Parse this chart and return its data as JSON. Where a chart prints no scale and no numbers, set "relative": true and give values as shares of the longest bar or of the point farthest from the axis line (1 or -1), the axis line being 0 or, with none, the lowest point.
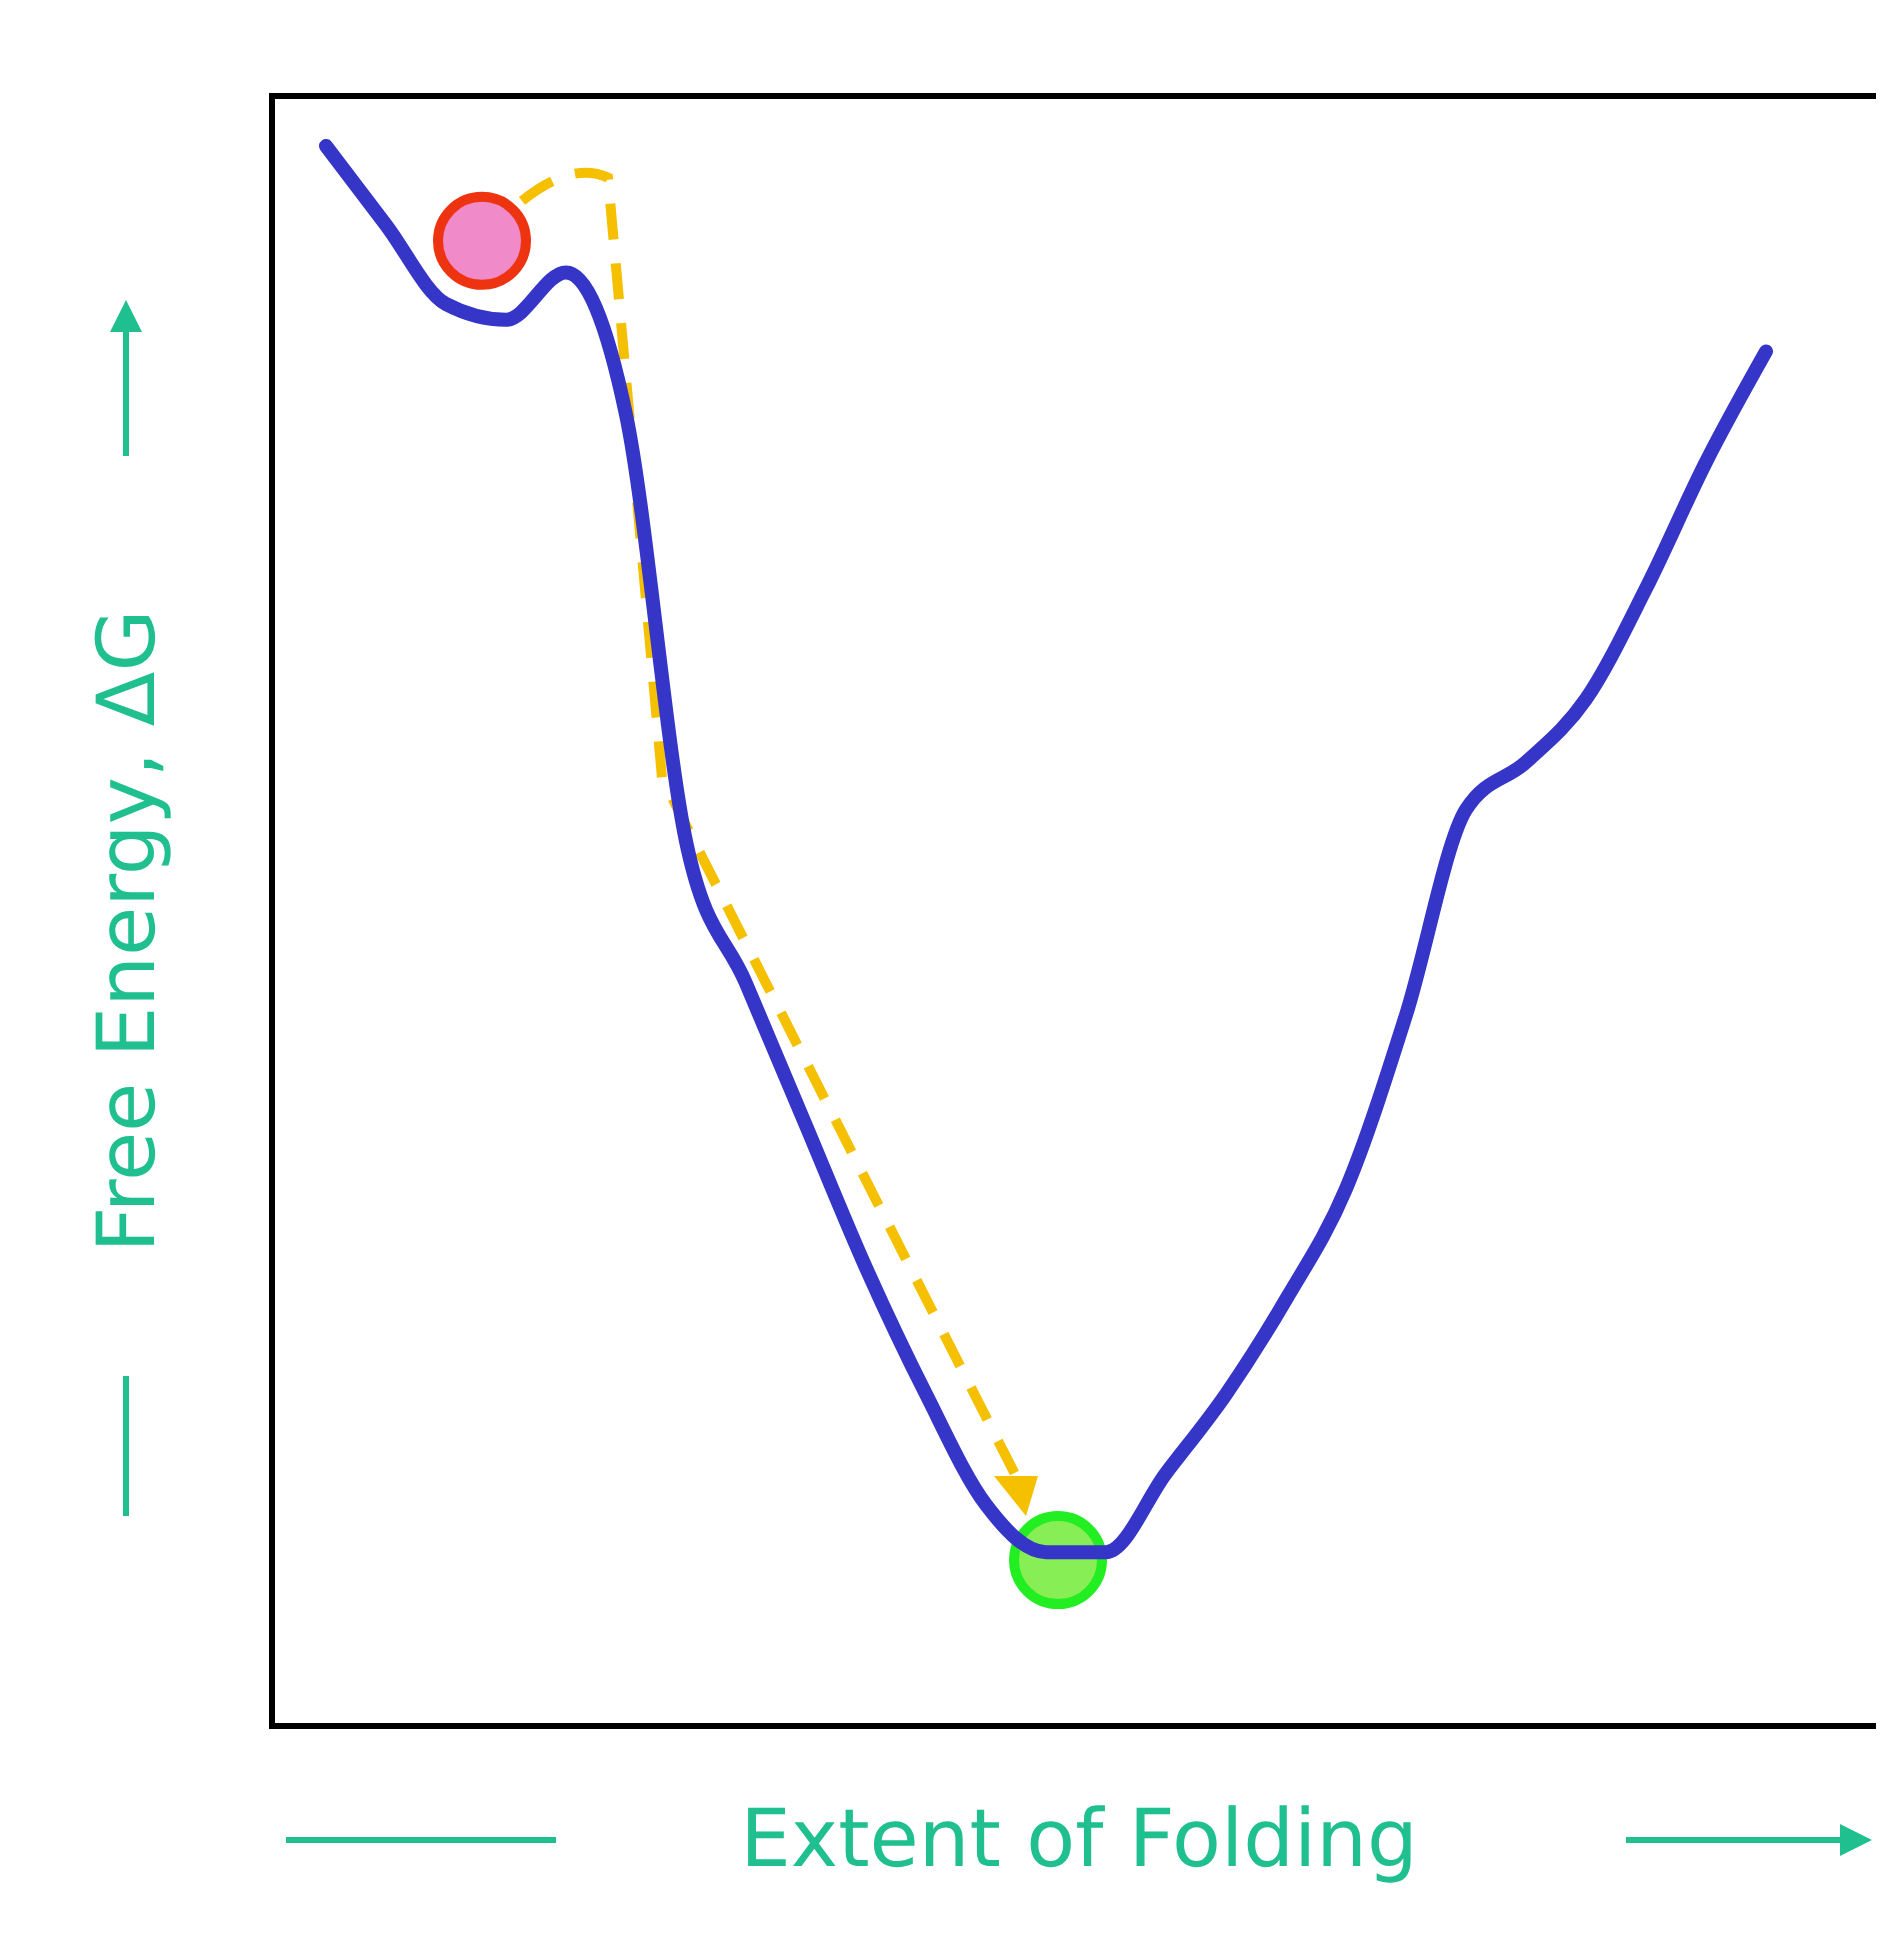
{
  "chart_data": {
    "type": "line",
    "relative": true,
    "xlabel": "Extent of Folding",
    "ylabel": "Free Energy, ΔG",
    "categories": [
      null,
      null,
      null,
      null,
      null,
      null,
      null,
      null,
      null,
      null,
      null,
      null,
      null,
      null,
      null,
      null,
      null,
      null,
      null,
      null,
      null,
      null,
      null,
      null,
      null
    ],
    "series": [
      {
        "color": "#3535c8",
        "values": [
          1.0,
          0.95,
          0.9,
          0.89,
          0.92,
          0.83,
          0.56,
          0.47,
          0.38,
          0.29,
          0.21,
          0.14,
          0.11,
          0.11,
          0.16,
          0.21,
          0.27,
          0.34,
          0.45,
          0.58,
          0.61,
          0.65,
          0.72,
          0.8,
          0.87
        ]
      }
    ]
  }
}
